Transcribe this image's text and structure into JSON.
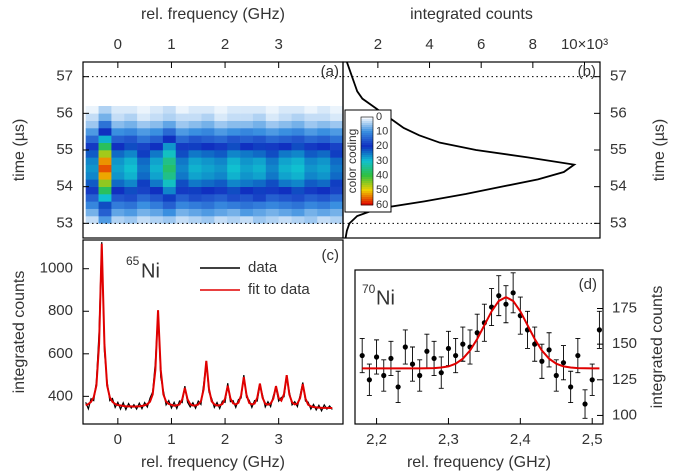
{
  "chart_data": [
    {
      "type": "heatmap",
      "panel_label": "(a)",
      "xlabel": "rel. frequency (GHz)",
      "ylabel": "time (µs)",
      "xlim": [
        -0.65,
        4.2
      ],
      "xticks": [
        0,
        1,
        2,
        3
      ],
      "ylim": [
        52.6,
        57.4
      ],
      "yticks": [
        53,
        54,
        55,
        56,
        57
      ],
      "hlines": [
        53,
        57
      ],
      "freq_bins": [
        -0.6,
        -0.36,
        -0.12,
        0.12,
        0.36,
        0.6,
        0.84,
        1.08,
        1.32,
        1.56,
        1.8,
        2.04,
        2.28,
        2.52,
        2.76,
        3.0,
        3.24,
        3.48,
        3.72,
        3.96,
        4.2
      ],
      "time_bins": [
        53.0,
        53.2,
        53.4,
        53.6,
        53.8,
        54.0,
        54.2,
        54.4,
        54.6,
        54.8,
        55.0,
        55.2,
        55.4,
        55.6,
        55.8,
        56.0,
        56.2
      ],
      "counts": [
        [
          3,
          9,
          4,
          5,
          3,
          4,
          5,
          3,
          4,
          5,
          3,
          4,
          3,
          5,
          4,
          3,
          4,
          5,
          3,
          4
        ],
        [
          7,
          15,
          8,
          9,
          7,
          8,
          10,
          7,
          8,
          9,
          8,
          7,
          9,
          8,
          7,
          8,
          9,
          7,
          8,
          7
        ],
        [
          11,
          22,
          12,
          13,
          10,
          12,
          15,
          11,
          12,
          13,
          11,
          12,
          13,
          12,
          11,
          12,
          13,
          11,
          12,
          10
        ],
        [
          15,
          30,
          16,
          17,
          14,
          16,
          21,
          15,
          17,
          16,
          15,
          17,
          16,
          18,
          15,
          16,
          17,
          15,
          16,
          14
        ],
        [
          19,
          38,
          20,
          22,
          18,
          20,
          26,
          19,
          21,
          20,
          19,
          22,
          20,
          21,
          19,
          20,
          22,
          19,
          20,
          18
        ],
        [
          23,
          45,
          24,
          26,
          21,
          25,
          31,
          22,
          25,
          24,
          23,
          26,
          25,
          24,
          22,
          25,
          26,
          23,
          24,
          21
        ],
        [
          26,
          52,
          27,
          29,
          24,
          28,
          35,
          25,
          28,
          27,
          26,
          29,
          27,
          28,
          25,
          28,
          29,
          26,
          27,
          24
        ],
        [
          27,
          56,
          28,
          30,
          25,
          29,
          37,
          26,
          29,
          28,
          27,
          30,
          28,
          29,
          26,
          29,
          30,
          27,
          28,
          25
        ],
        [
          26,
          53,
          27,
          29,
          24,
          28,
          35,
          25,
          28,
          27,
          26,
          29,
          27,
          28,
          25,
          28,
          29,
          26,
          27,
          24
        ],
        [
          23,
          46,
          24,
          26,
          21,
          25,
          31,
          22,
          25,
          24,
          23,
          26,
          25,
          24,
          22,
          25,
          26,
          23,
          24,
          21
        ],
        [
          19,
          38,
          20,
          22,
          18,
          20,
          27,
          19,
          21,
          20,
          19,
          22,
          20,
          21,
          19,
          20,
          22,
          19,
          20,
          18
        ],
        [
          14,
          29,
          15,
          16,
          13,
          15,
          20,
          14,
          16,
          15,
          14,
          16,
          15,
          16,
          14,
          15,
          16,
          14,
          15,
          13
        ],
        [
          9,
          20,
          10,
          11,
          9,
          10,
          14,
          9,
          10,
          11,
          9,
          10,
          11,
          10,
          9,
          10,
          11,
          9,
          10,
          9
        ],
        [
          5,
          13,
          6,
          7,
          5,
          6,
          8,
          5,
          6,
          7,
          5,
          6,
          6,
          7,
          5,
          6,
          7,
          5,
          6,
          5
        ],
        [
          3,
          7,
          3,
          4,
          2,
          3,
          4,
          3,
          3,
          4,
          2,
          3,
          3,
          4,
          2,
          3,
          4,
          3,
          3,
          2
        ],
        [
          1,
          4,
          2,
          2,
          1,
          2,
          3,
          1,
          2,
          2,
          1,
          2,
          2,
          2,
          1,
          2,
          2,
          1,
          2,
          1
        ]
      ],
      "colorbar": {
        "label": "color coding",
        "ticks": [
          0,
          10,
          20,
          30,
          40,
          50,
          60
        ],
        "colors": [
          "#ffffff",
          "#3a8fe0",
          "#1030c0",
          "#10c0d0",
          "#30c040",
          "#f0d000",
          "#e00000"
        ]
      }
    },
    {
      "type": "line",
      "orientation": "horizontal",
      "panel_label": "(b)",
      "xlabel": "integrated counts",
      "ylabel": "time (µs)",
      "xlim": [
        0.65,
        10.6
      ],
      "xticks": [
        2,
        4,
        6,
        8,
        {
          "value": 10,
          "label": "10×10³"
        }
      ],
      "ylim": [
        52.6,
        57.4
      ],
      "yticks": [
        53,
        54,
        55,
        56,
        57
      ],
      "hlines": [
        53,
        57
      ],
      "color": "#000000",
      "y": [
        57.4,
        57.2,
        57.0,
        56.8,
        56.6,
        56.4,
        56.2,
        56.0,
        55.8,
        55.6,
        55.4,
        55.2,
        55.0,
        54.8,
        54.6,
        54.4,
        54.2,
        54.0,
        53.8,
        53.6,
        53.4,
        53.2,
        53.0,
        52.8,
        52.6
      ],
      "values": [
        0.8,
        0.9,
        1.0,
        1.1,
        1.2,
        1.4,
        1.8,
        2.2,
        2.6,
        3.0,
        3.6,
        4.4,
        5.8,
        7.8,
        9.6,
        9.2,
        8.2,
        6.8,
        5.4,
        3.8,
        2.0,
        1.2,
        0.9,
        0.8,
        0.75
      ]
    },
    {
      "type": "line",
      "panel_label": "(c)",
      "isotope": {
        "mass": "65",
        "element": "Ni"
      },
      "xlabel": "rel. frequency (GHz)",
      "ylabel": "integrated counts",
      "xlim": [
        -0.65,
        4.2
      ],
      "xticks": [
        0,
        1,
        2,
        3
      ],
      "ylim": [
        270,
        1135
      ],
      "yticks": [
        400,
        600,
        800,
        1000
      ],
      "x": [
        -0.6,
        -0.55,
        -0.5,
        -0.45,
        -0.4,
        -0.35,
        -0.3,
        -0.25,
        -0.2,
        -0.15,
        -0.1,
        -0.05,
        0,
        0.05,
        0.1,
        0.15,
        0.2,
        0.25,
        0.3,
        0.35,
        0.4,
        0.45,
        0.5,
        0.55,
        0.6,
        0.65,
        0.7,
        0.75,
        0.8,
        0.85,
        0.9,
        0.95,
        1,
        1.05,
        1.1,
        1.15,
        1.2,
        1.25,
        1.3,
        1.35,
        1.4,
        1.45,
        1.5,
        1.55,
        1.6,
        1.65,
        1.7,
        1.75,
        1.8,
        1.85,
        1.9,
        1.95,
        2,
        2.05,
        2.1,
        2.15,
        2.2,
        2.25,
        2.3,
        2.35,
        2.4,
        2.45,
        2.5,
        2.55,
        2.6,
        2.65,
        2.7,
        2.75,
        2.8,
        2.85,
        2.9,
        2.95,
        3,
        3.05,
        3.1,
        3.15,
        3.2,
        3.25,
        3.3,
        3.35,
        3.4,
        3.45,
        3.5,
        3.55,
        3.6,
        3.65,
        3.7,
        3.75,
        3.8,
        3.85,
        3.9,
        3.95,
        4
      ],
      "series": [
        {
          "name": "data",
          "color": "#000000",
          "values": [
            372,
            341,
            389,
            380,
            470,
            702,
            1125,
            610,
            470,
            380,
            390,
            348,
            372,
            340,
            370,
            338,
            366,
            345,
            361,
            340,
            368,
            342,
            371,
            350,
            392,
            421,
            560,
            798,
            490,
            425,
            360,
            380,
            345,
            372,
            343,
            378,
            371,
            448,
            372,
            350,
            370,
            344,
            378,
            362,
            455,
            560,
            420,
            390,
            348,
            371,
            343,
            378,
            372,
            462,
            375,
            380,
            348,
            385,
            392,
            500,
            395,
            382,
            348,
            380,
            378,
            452,
            405,
            350,
            375,
            352,
            402,
            440,
            378,
            395,
            398,
            492,
            420,
            360,
            375,
            352,
            405,
            465,
            378,
            373,
            340,
            362,
            336,
            358,
            332,
            360,
            340,
            355,
            338
          ]
        },
        {
          "name": "fit to data",
          "color": "#e00000",
          "values": [
            358,
            364,
            374,
            396,
            451,
            645,
            1117,
            645,
            451,
            396,
            374,
            364,
            359,
            357,
            355,
            353,
            353,
            353,
            352,
            353,
            353,
            355,
            358,
            363,
            375,
            409,
            524,
            805,
            524,
            409,
            375,
            364,
            360,
            356,
            358,
            362,
            385,
            440,
            386,
            363,
            357,
            357,
            362,
            377,
            433,
            567,
            434,
            377,
            362,
            357,
            358,
            364,
            389,
            450,
            390,
            367,
            362,
            370,
            405,
            491,
            407,
            369,
            362,
            366,
            393,
            460,
            393,
            365,
            361,
            366,
            389,
            448,
            392,
            380,
            411,
            500,
            408,
            372,
            362,
            366,
            392,
            458,
            390,
            361,
            353,
            350,
            348,
            347,
            346,
            346,
            346,
            345,
            345
          ]
        }
      ]
    },
    {
      "type": "scatter",
      "panel_label": "(d)",
      "isotope": {
        "mass": "70",
        "element": "Ni"
      },
      "xlabel": "rel. frequency (GHz)",
      "ylabel": "integrated counts",
      "xlim": [
        2.17,
        2.515
      ],
      "xticks": [
        {
          "value": 2.2,
          "label": "2,2"
        },
        {
          "value": 2.3,
          "label": "2,3"
        },
        {
          "value": 2.4,
          "label": "2,4"
        },
        {
          "value": 2.5,
          "label": "2,5"
        }
      ],
      "ylim": [
        94,
        202
      ],
      "yticks": [
        100,
        125,
        150,
        175
      ],
      "x": [
        2.18,
        2.19,
        2.2,
        2.21,
        2.22,
        2.23,
        2.24,
        2.25,
        2.26,
        2.27,
        2.28,
        2.29,
        2.3,
        2.31,
        2.32,
        2.33,
        2.34,
        2.35,
        2.36,
        2.37,
        2.38,
        2.39,
        2.4,
        2.41,
        2.42,
        2.43,
        2.44,
        2.45,
        2.46,
        2.47,
        2.48,
        2.49,
        2.5,
        2.51
      ],
      "points": {
        "color": "#000000",
        "values": [
          142,
          125,
          141,
          128,
          140,
          120,
          148,
          136,
          128,
          145,
          140,
          130,
          147,
          142,
          150,
          148,
          158,
          165,
          176,
          184,
          178,
          186,
          170,
          160,
          150,
          138,
          146,
          128,
          137,
          120,
          142,
          108,
          125,
          160
        ],
        "errors": [
          12,
          11,
          12,
          11,
          12,
          11,
          12,
          12,
          11,
          12,
          12,
          11,
          12,
          12,
          12,
          12,
          13,
          13,
          13,
          14,
          13,
          14,
          13,
          13,
          12,
          12,
          12,
          11,
          12,
          11,
          12,
          10,
          11,
          13
        ]
      },
      "fit": {
        "color": "#e00000",
        "values": [
          133,
          133,
          133,
          133,
          133,
          133,
          133,
          133,
          133,
          133.1,
          133.2,
          133.6,
          134.4,
          136.3,
          139.8,
          145.5,
          153.6,
          163.3,
          173,
          180.3,
          183,
          180.3,
          173,
          163.3,
          153.6,
          145.5,
          139.8,
          136.3,
          134.4,
          133.6,
          133.2,
          133.1,
          133,
          133
        ]
      }
    }
  ]
}
